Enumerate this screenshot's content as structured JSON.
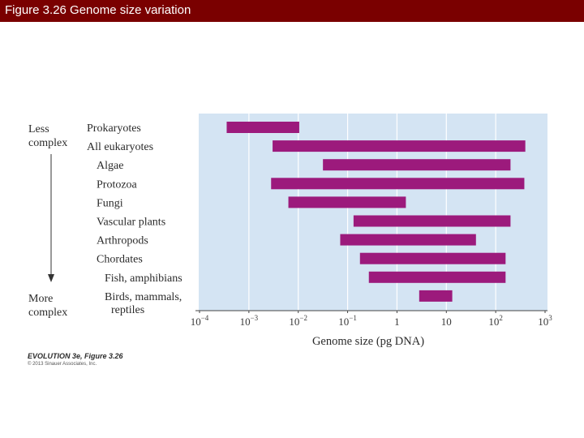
{
  "header": {
    "title": "Figure 3.26  Genome size variation"
  },
  "chart_data": {
    "type": "bar",
    "orientation": "horizontal-range",
    "scale": "log10",
    "xlabel": "Genome size (pg DNA)",
    "xlim_exponents": [
      -4,
      3
    ],
    "ticks": [
      {
        "base": "10",
        "exp": "−4"
      },
      {
        "base": "10",
        "exp": "−3"
      },
      {
        "base": "10",
        "exp": "−2"
      },
      {
        "base": "10",
        "exp": "−1"
      },
      {
        "base": "1",
        "exp": ""
      },
      {
        "base": "10",
        "exp": ""
      },
      {
        "base": "10",
        "exp": "2"
      },
      {
        "base": "10",
        "exp": "3"
      }
    ],
    "series": [
      {
        "name": "Prokaryotes",
        "lines": [
          "Prokaryotes"
        ],
        "indent": 0,
        "min_exp": -3.45,
        "max_exp": -1.98
      },
      {
        "name": "All eukaryotes",
        "lines": [
          "All eukaryotes"
        ],
        "indent": 0,
        "min_exp": -2.52,
        "max_exp": 2.6
      },
      {
        "name": "Algae",
        "lines": [
          "Algae"
        ],
        "indent": 1,
        "min_exp": -1.5,
        "max_exp": 2.3
      },
      {
        "name": "Protozoa",
        "lines": [
          "Protozoa"
        ],
        "indent": 1,
        "min_exp": -2.55,
        "max_exp": 2.58
      },
      {
        "name": "Fungi",
        "lines": [
          "Fungi"
        ],
        "indent": 1,
        "min_exp": -2.2,
        "max_exp": 0.18
      },
      {
        "name": "Vascular plants",
        "lines": [
          "Vascular plants"
        ],
        "indent": 1,
        "min_exp": -0.88,
        "max_exp": 2.3
      },
      {
        "name": "Arthropods",
        "lines": [
          "Arthropods"
        ],
        "indent": 1,
        "min_exp": -1.15,
        "max_exp": 1.6
      },
      {
        "name": "Chordates",
        "lines": [
          "Chordates"
        ],
        "indent": 1,
        "min_exp": -0.75,
        "max_exp": 2.2
      },
      {
        "name": "Fish, amphibians",
        "lines": [
          "Fish, amphibians"
        ],
        "indent": 2,
        "min_exp": -0.57,
        "max_exp": 2.2
      },
      {
        "name": "Birds, mammals, reptiles",
        "lines": [
          "Birds, mammals,",
          "reptiles"
        ],
        "indent": 2,
        "min_exp": 0.45,
        "max_exp": 1.12
      }
    ],
    "side_labels": {
      "top": [
        "Less",
        "complex"
      ],
      "bottom": [
        "More",
        "complex"
      ]
    },
    "colors": {
      "bar": "#9c1a7c",
      "plot_bg": "#d4e4f3",
      "grid": "#ffffff"
    }
  },
  "caption": {
    "book": "EVOLUTION 3e, Figure 3.26",
    "copyright": "© 2013 Sinauer Associates, Inc."
  }
}
